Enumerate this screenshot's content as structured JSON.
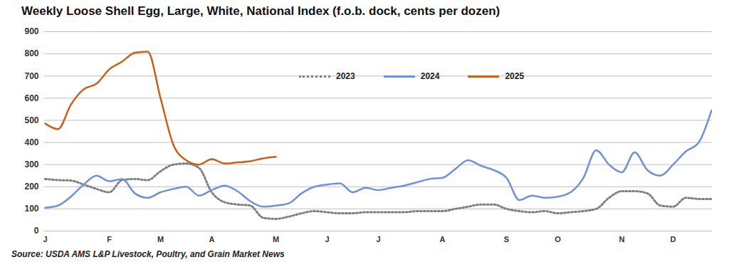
{
  "chart_data": {
    "type": "line",
    "title": "Weekly Loose Shell Egg, Large, White, National Index (f.o.b. dock, cents per dozen)",
    "caption": "Source: USDA AMS L&P Livestock, Poultry, and Grain Market News",
    "categories": [
      "J",
      null,
      null,
      null,
      null,
      "F",
      null,
      null,
      null,
      "M",
      null,
      null,
      null,
      "A",
      null,
      null,
      null,
      null,
      "M",
      null,
      null,
      null,
      "J",
      null,
      null,
      null,
      "J",
      null,
      null,
      null,
      null,
      "A",
      null,
      null,
      null,
      null,
      "S",
      null,
      null,
      null,
      "O",
      null,
      null,
      null,
      null,
      "N",
      null,
      null,
      null,
      "D",
      null,
      null,
      null
    ],
    "series": [
      {
        "name": "2023",
        "color": "#7f7f7f",
        "line_style": "dotted",
        "values": [
          235,
          230,
          228,
          210,
          190,
          175,
          230,
          235,
          230,
          270,
          300,
          305,
          285,
          175,
          130,
          120,
          115,
          60,
          55,
          65,
          80,
          90,
          85,
          80,
          80,
          85,
          85,
          85,
          85,
          90,
          90,
          90,
          100,
          110,
          120,
          120,
          100,
          90,
          85,
          90,
          80,
          85,
          90,
          100,
          150,
          180,
          180,
          170,
          115,
          110,
          150,
          145,
          145
        ]
      },
      {
        "name": "2024",
        "color": "#6f91d9",
        "line_style": "solid",
        "values": [
          105,
          115,
          155,
          210,
          250,
          225,
          235,
          170,
          150,
          175,
          190,
          200,
          160,
          185,
          205,
          180,
          135,
          110,
          115,
          125,
          170,
          200,
          210,
          215,
          175,
          195,
          185,
          195,
          205,
          220,
          235,
          240,
          280,
          320,
          295,
          275,
          240,
          140,
          160,
          150,
          155,
          175,
          240,
          365,
          300,
          265,
          355,
          275,
          250,
          300,
          360,
          400,
          545
        ]
      },
      {
        "name": "2025",
        "color": "#c5611a",
        "line_style": "solid",
        "values": [
          485,
          460,
          570,
          640,
          665,
          730,
          765,
          805,
          810,
          600,
          390,
          320,
          300,
          325,
          305,
          310,
          315,
          328,
          335,
          null,
          null,
          null,
          null,
          null,
          null,
          null,
          null,
          null,
          null,
          null,
          null,
          null,
          null,
          null,
          null,
          null,
          null,
          null,
          null,
          null,
          null,
          null,
          null,
          null,
          null,
          null,
          null,
          null,
          null,
          null,
          null,
          null,
          null
        ]
      }
    ],
    "ylim": [
      0,
      900
    ],
    "yticks": [
      0,
      100,
      200,
      300,
      400,
      500,
      600,
      700,
      800,
      900
    ],
    "grid": true,
    "legend": "top"
  }
}
